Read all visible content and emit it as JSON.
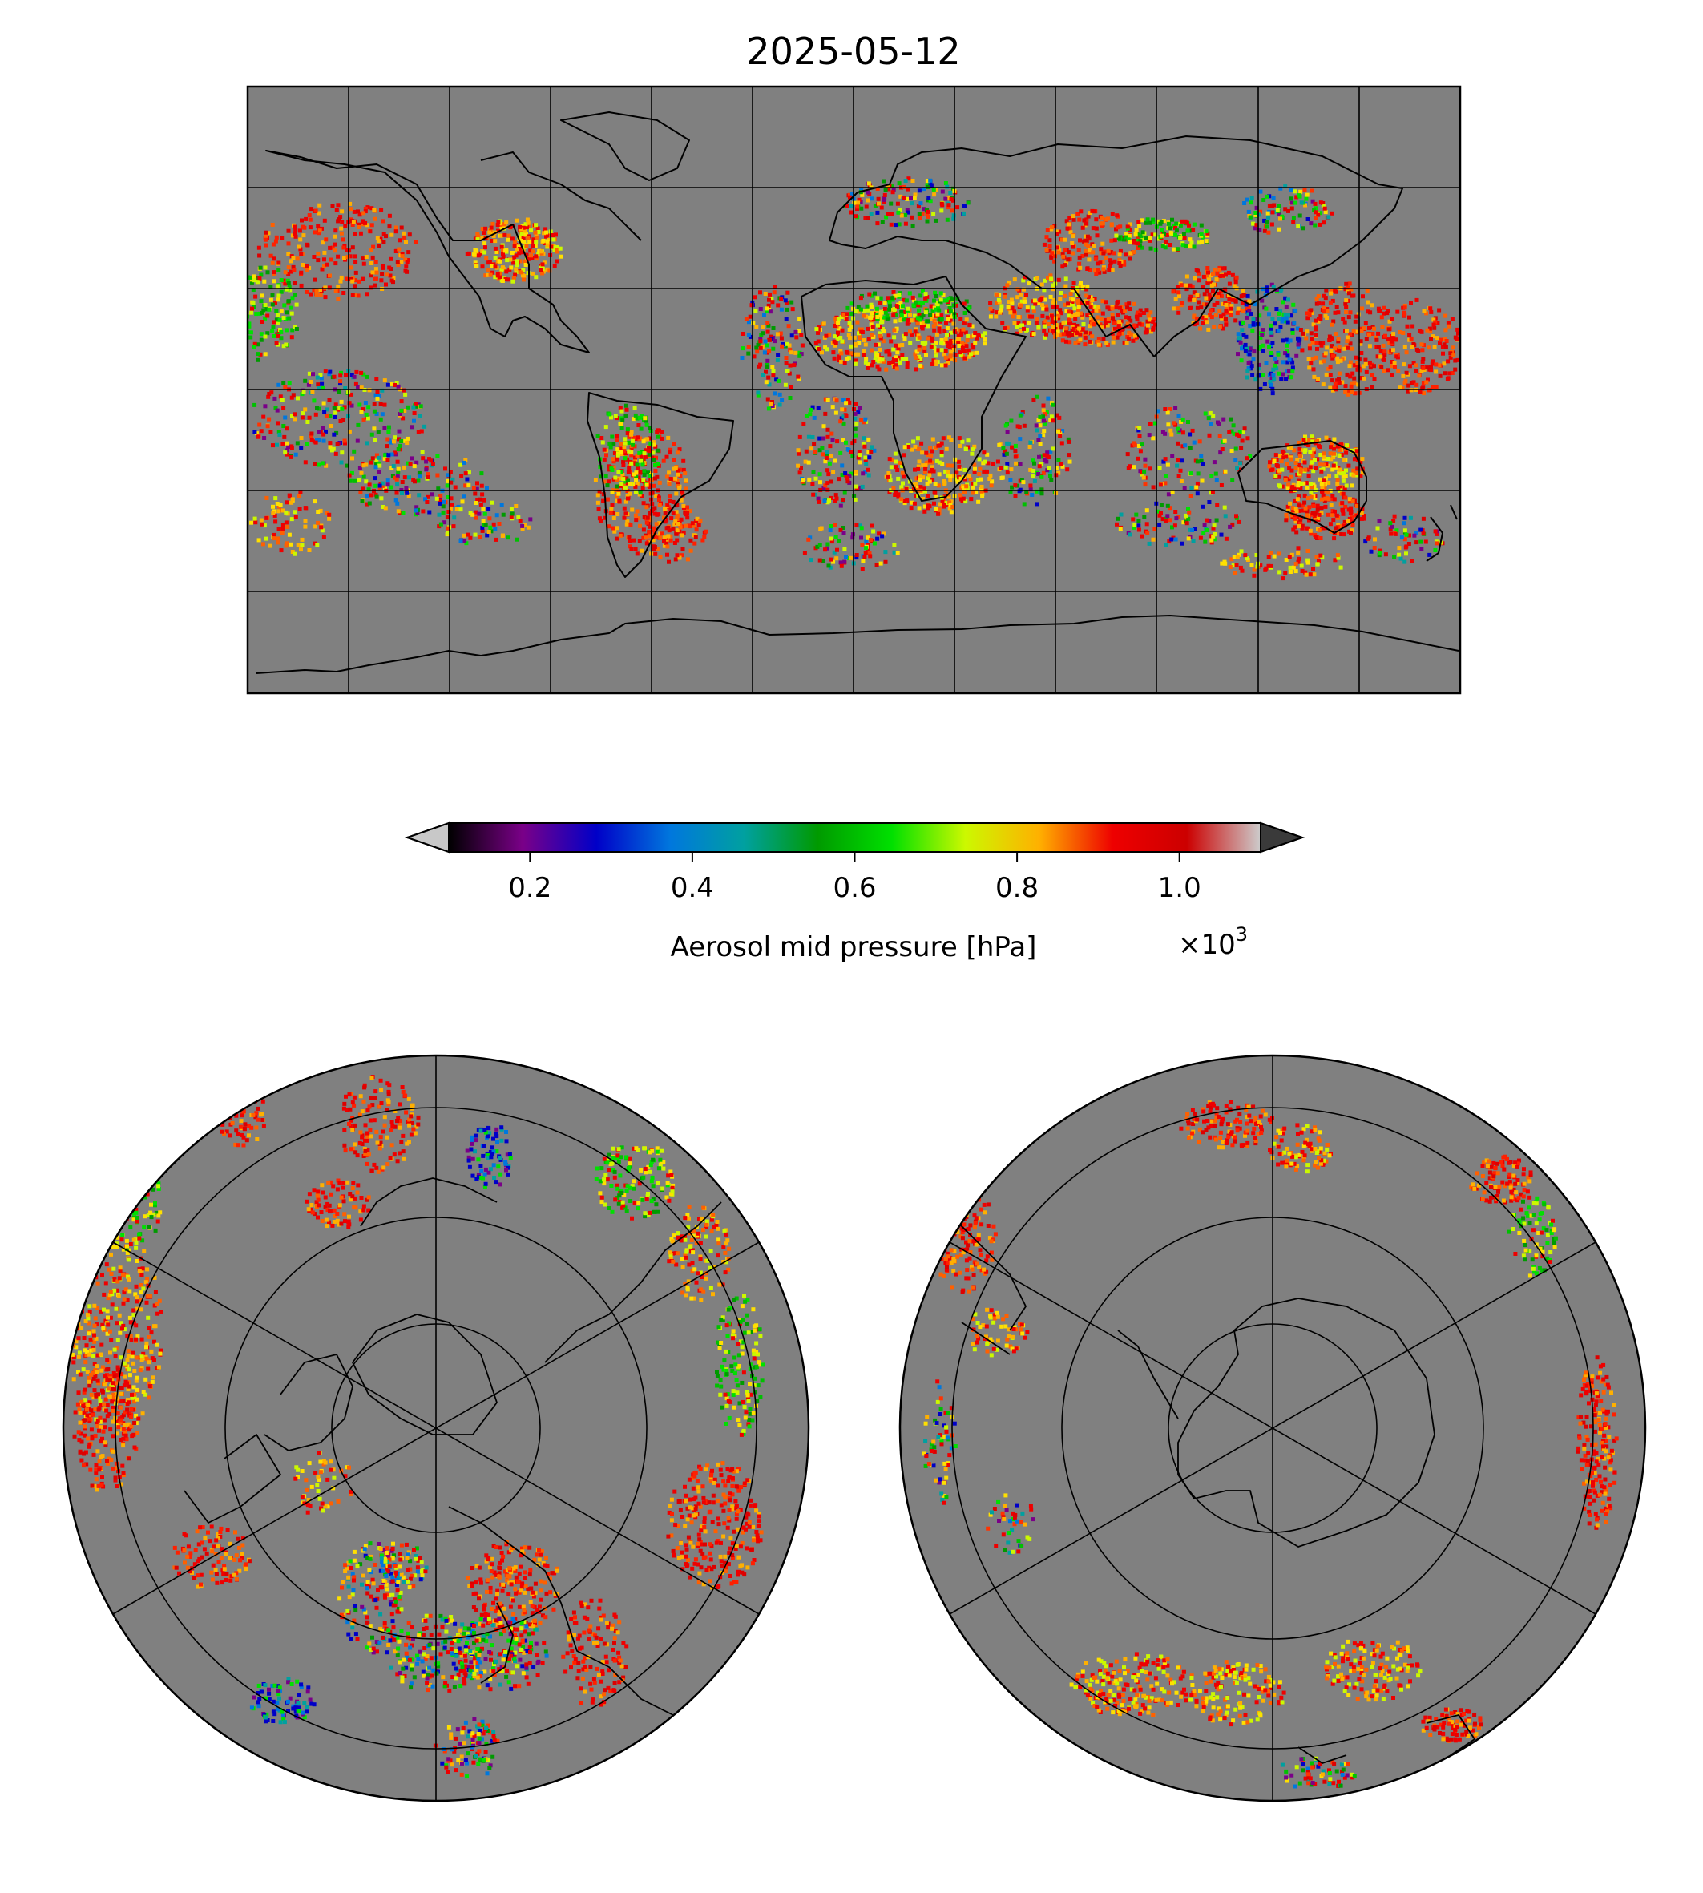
{
  "title": "2025-05-12",
  "colorbar": {
    "label": "Aerosol mid pressure [hPa]",
    "offset_text": "×10",
    "offset_exponent": "3",
    "range": [
      0.1,
      1.1
    ],
    "ticks": [
      0.2,
      0.4,
      0.6,
      0.8,
      1.0
    ],
    "tick_labels": [
      "0.2",
      "0.4",
      "0.6",
      "0.8",
      "1.0"
    ],
    "extend": "both",
    "under_color": "#c8c8c8",
    "over_color": "#3a3a3a",
    "colormap": "nipy_spectral",
    "colormap_stops": [
      "#000000",
      "#7a0088",
      "#0000c8",
      "#0077dd",
      "#00a0a0",
      "#009a00",
      "#00e000",
      "#ccf800",
      "#ffb000",
      "#ee0000",
      "#cc0000",
      "#cccccc"
    ]
  },
  "maps": {
    "background_color": "#808080",
    "global": {
      "projection": "plate-carree",
      "gridlines": "30° spacing"
    },
    "north": {
      "projection": "north-polar-stereographic",
      "gridlines": "rings and meridians"
    },
    "south": {
      "projection": "south-polar-stereographic",
      "gridlines": "rings and meridians"
    }
  }
}
